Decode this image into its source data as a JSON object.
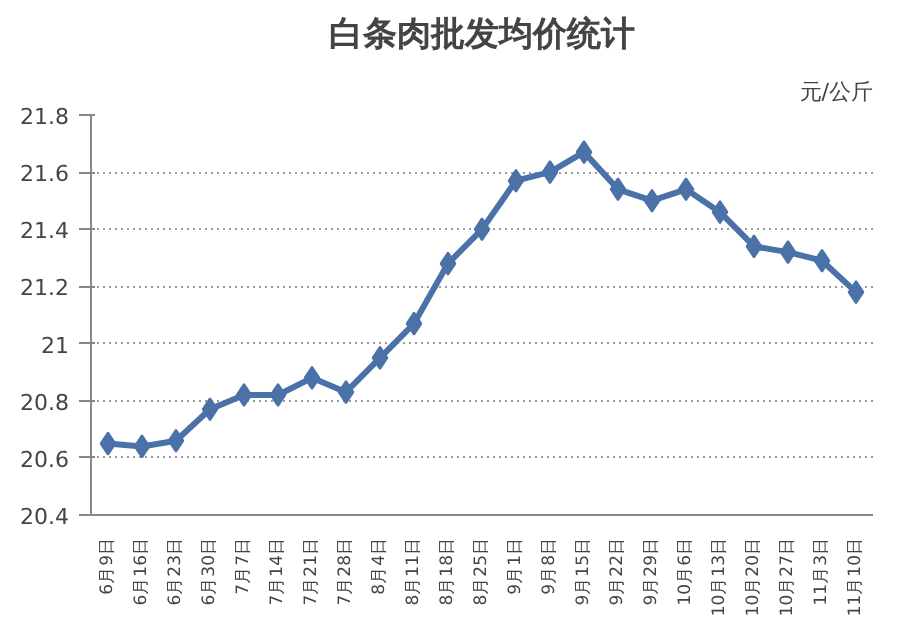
{
  "chart_data": {
    "type": "line",
    "title": "白条肉批发均价统计",
    "ylabel": "元/公斤",
    "categories": [
      "6月9日",
      "6月16日",
      "6月23日",
      "6月30日",
      "7月7日",
      "7月14日",
      "7月21日",
      "7月28日",
      "8月4日",
      "8月11日",
      "8月18日",
      "8月25日",
      "9月1日",
      "9月8日",
      "9月15日",
      "9月22日",
      "9月29日",
      "10月6日",
      "10月13日",
      "10月20日",
      "10月27日",
      "11月3日",
      "11月10日"
    ],
    "series": [
      {
        "color": "#4a72a8",
        "values": [
          20.65,
          20.64,
          20.66,
          20.77,
          20.82,
          20.82,
          20.88,
          20.83,
          20.95,
          21.07,
          21.28,
          21.4,
          21.57,
          21.6,
          21.67,
          21.54,
          21.5,
          21.54,
          21.46,
          21.34,
          21.32,
          21.29,
          21.18
        ]
      }
    ],
    "ylim": [
      20.4,
      21.8
    ],
    "yticks": [
      20.4,
      20.6,
      20.8,
      21,
      21.2,
      21.4,
      21.6,
      21.8
    ],
    "grid": "y",
    "marker": "diamond",
    "line_style": "solid"
  }
}
